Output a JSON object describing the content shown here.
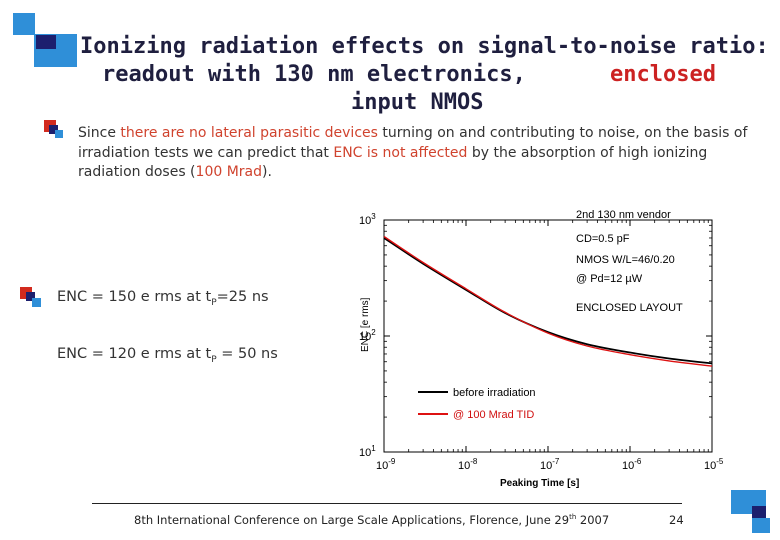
{
  "slide": {
    "title_line1": "Ionizing radiation effects on signal-to-noise ratio: p",
    "title_line2_left": "readout with 130 nm electronics,",
    "title_line2_right": "enclosed",
    "title_line3": "input NMOS",
    "body_parts": [
      "Since ",
      "there are no lateral parasitic devices",
      " turning on and contributing to noise, on the basis of irradiation tests we can predict that ",
      "ENC is not affected",
      " by the absorption of high ionizing radiation doses (",
      "100 Mrad",
      ")."
    ],
    "enc_line1": {
      "prefix": "ENC = 150 e rms at t",
      "sub": "P",
      "suffix": "=25 ns"
    },
    "enc_line2": {
      "prefix": "ENC = 120 e rms at t",
      "sub": "P",
      "suffix": " = 50 ns"
    },
    "footer_text": {
      "prefix": "8th International Conference on Large Scale Applications, Florence, June 29",
      "sup": "th",
      "suffix": " 2007"
    },
    "page_number": "24"
  },
  "colors": {
    "accent_red": "#d0432e",
    "title_red": "#cc2222",
    "square_blue": "#2f8fd8",
    "square_dark": "#1c1f6e",
    "square_red": "#d22a1e"
  },
  "chart_data": {
    "type": "line",
    "title": "",
    "xlabel": "Peaking Time [s]",
    "ylabel": "ENC [e rms]",
    "xscale": "log",
    "yscale": "log",
    "xlim": [
      1e-09,
      1e-05
    ],
    "ylim": [
      10,
      1000
    ],
    "x_ticks": [
      {
        "base": "10",
        "exp": "-9",
        "value": 1e-09
      },
      {
        "base": "10",
        "exp": "-8",
        "value": 1e-08
      },
      {
        "base": "10",
        "exp": "-7",
        "value": 1e-07
      },
      {
        "base": "10",
        "exp": "-6",
        "value": 1e-06
      },
      {
        "base": "10",
        "exp": "-5",
        "value": 1e-05
      }
    ],
    "y_ticks": [
      {
        "base": "10",
        "exp": "1",
        "value": 10
      },
      {
        "base": "10",
        "exp": "2",
        "value": 100
      },
      {
        "base": "10",
        "exp": "3",
        "value": 1000
      }
    ],
    "annotations": [
      "2nd 130 nm vendor",
      "CD=0.5 pF",
      "NMOS W/L=46/0.20",
      "@ Pd=12 µW",
      "ENCLOSED LAYOUT"
    ],
    "legend_location": "bottom-left",
    "series": [
      {
        "name": "before irradiation",
        "color": "#000000",
        "points": [
          [
            1e-09,
            700
          ],
          [
            3e-09,
            420
          ],
          [
            1e-08,
            250
          ],
          [
            3e-08,
            158
          ],
          [
            1e-07,
            108
          ],
          [
            3e-07,
            85
          ],
          [
            1e-06,
            72
          ],
          [
            3e-06,
            64
          ],
          [
            1e-05,
            58
          ]
        ]
      },
      {
        "name": "@ 100 Mrad TID",
        "color": "#dd1111",
        "points": [
          [
            1e-09,
            720
          ],
          [
            3e-09,
            430
          ],
          [
            1e-08,
            255
          ],
          [
            3e-08,
            160
          ],
          [
            1e-07,
            106
          ],
          [
            3e-07,
            82
          ],
          [
            1e-06,
            69
          ],
          [
            3e-06,
            61
          ],
          [
            1e-05,
            55
          ]
        ]
      }
    ]
  }
}
